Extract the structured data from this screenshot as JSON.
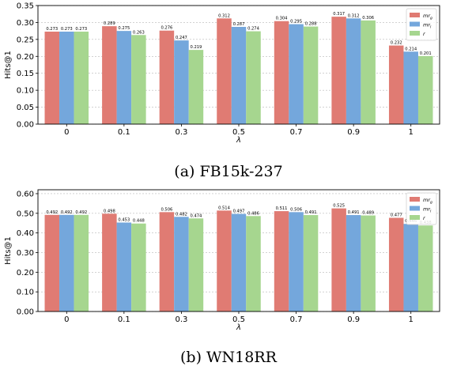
{
  "chart_data": [
    {
      "type": "bar",
      "caption": "(a) FB15k-237",
      "xlabel": "λ",
      "ylabel": "Hits@1",
      "categories": [
        "0",
        "0.1",
        "0.3",
        "0.5",
        "0.7",
        "0.9",
        "1"
      ],
      "ylim": [
        0,
        0.35
      ],
      "yticks": [
        "0.00",
        "0.05",
        "0.10",
        "0.15",
        "0.20",
        "0.25",
        "0.30",
        "0.35"
      ],
      "grid": true,
      "legend_position": "top-right",
      "series": [
        {
          "name": "mr_g",
          "sub": "g",
          "color": "#e07b73",
          "values": [
            0.273,
            0.289,
            0.276,
            0.312,
            0.304,
            0.317,
            0.232
          ],
          "labels": [
            "0.273",
            "0.289",
            "0.276",
            "0.312",
            "0.304",
            "0.317",
            "0.232"
          ]
        },
        {
          "name": "mr_l",
          "sub": "l",
          "color": "#74a7dc",
          "values": [
            0.273,
            0.275,
            0.247,
            0.287,
            0.295,
            0.312,
            0.214
          ],
          "labels": [
            "0.273",
            "0.275",
            "0.247",
            "0.287",
            "0.295",
            "0.312",
            "0.214"
          ]
        },
        {
          "name": "r",
          "sub": "",
          "color": "#a6d68f",
          "values": [
            0.273,
            0.263,
            0.219,
            0.274,
            0.288,
            0.306,
            0.201
          ],
          "labels": [
            "0.273",
            "0.263",
            "0.219",
            "0.274",
            "0.288",
            "0.306",
            "0.201"
          ]
        }
      ]
    },
    {
      "type": "bar",
      "caption": "(b) WN18RR",
      "xlabel": "λ",
      "ylabel": "Hits@1",
      "categories": [
        "0",
        "0.1",
        "0.3",
        "0.5",
        "0.7",
        "0.9",
        "1"
      ],
      "ylim": [
        0,
        0.62
      ],
      "yticks": [
        "0.00",
        "0.10",
        "0.20",
        "0.30",
        "0.40",
        "0.50",
        "0.60"
      ],
      "grid": true,
      "legend_position": "top-right",
      "series": [
        {
          "name": "mr_g",
          "sub": "g",
          "color": "#e07b73",
          "values": [
            0.492,
            0.498,
            0.506,
            0.514,
            0.511,
            0.525,
            0.477
          ],
          "labels": [
            "0.492",
            "0.498",
            "0.506",
            "0.514",
            "0.511",
            "0.525",
            "0.477"
          ]
        },
        {
          "name": "mr_l",
          "sub": "l",
          "color": "#74a7dc",
          "values": [
            0.492,
            0.453,
            0.482,
            0.497,
            0.506,
            0.491,
            0.446
          ],
          "labels": [
            "0.492",
            "0.453",
            "0.482",
            "0.497",
            "0.506",
            "0.491",
            "0.446"
          ]
        },
        {
          "name": "r",
          "sub": "",
          "color": "#a6d68f",
          "values": [
            0.492,
            0.448,
            0.474,
            0.486,
            0.491,
            0.489,
            0.438
          ],
          "labels": [
            "0.492",
            "0.448",
            "0.474",
            "0.486",
            "0.491",
            "0.489",
            "0.438"
          ]
        }
      ]
    }
  ]
}
